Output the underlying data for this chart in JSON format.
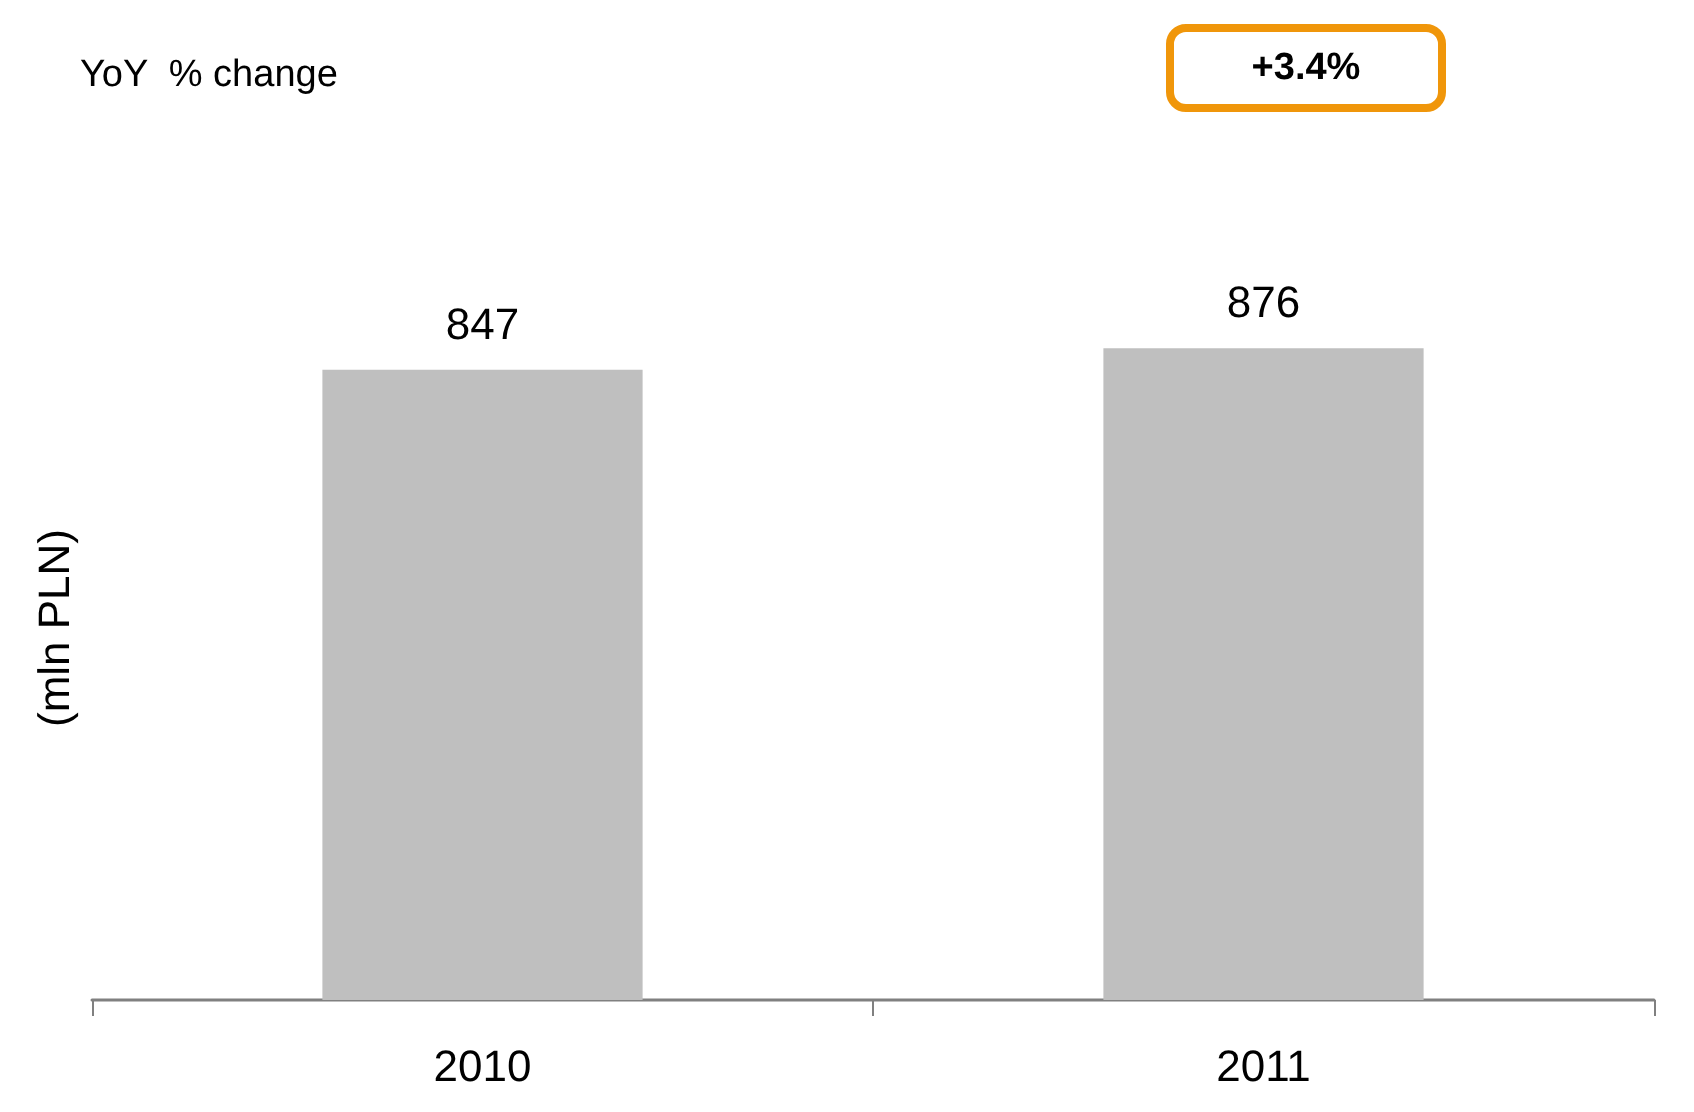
{
  "chart_data": {
    "type": "bar",
    "categories": [
      "2010",
      "2011"
    ],
    "values": [
      847,
      876
    ],
    "color": "#bfbfbf",
    "data_labels": true,
    "ylabel": "(mln PLN)",
    "annotations": [
      "YoY  % change",
      "+3.4%"
    ]
  }
}
